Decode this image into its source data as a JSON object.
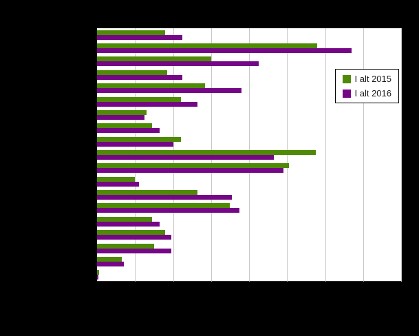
{
  "chart_data": {
    "type": "bar",
    "orientation": "horizontal",
    "title": "",
    "categories": [
      "",
      "",
      "",
      "",
      "",
      "",
      "",
      "",
      "",
      "",
      "",
      "",
      "",
      "",
      "",
      "",
      "",
      "",
      ""
    ],
    "series": [
      {
        "name": "I alt 2015",
        "color": "#4e8a06",
        "values": [
          1.8,
          5.8,
          3.0,
          1.85,
          2.85,
          2.2,
          1.3,
          1.45,
          2.2,
          5.75,
          5.05,
          1.0,
          2.65,
          3.5,
          1.45,
          1.8,
          1.5,
          0.65,
          0.06
        ]
      },
      {
        "name": "I alt 2016",
        "color": "#750787",
        "values": [
          2.25,
          6.7,
          4.25,
          2.25,
          3.8,
          2.65,
          1.25,
          1.65,
          2.0,
          4.65,
          4.9,
          1.1,
          3.55,
          3.75,
          1.65,
          1.95,
          1.95,
          0.7,
          0.03
        ]
      }
    ],
    "xlabel": "",
    "ylabel": "",
    "xlim": [
      0,
      8
    ],
    "grid": {
      "vertical_lines": 8,
      "color": "#c8c8c8"
    },
    "legend": {
      "position": "top-right"
    },
    "plot_background": "#ffffff",
    "page_background": "#000000"
  }
}
